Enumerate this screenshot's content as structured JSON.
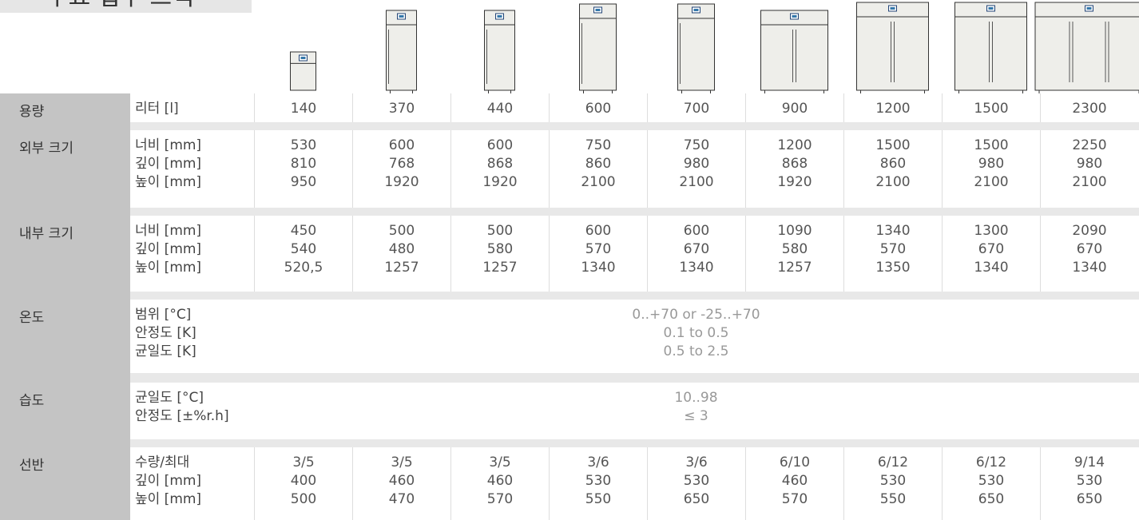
{
  "header": {
    "title": "주요 업무 스펙"
  },
  "rows": [
    {
      "label": "용량",
      "sub": [
        "리터 [l]"
      ],
      "cells": [
        [
          "140"
        ],
        [
          "370"
        ],
        [
          "440"
        ],
        [
          "600"
        ],
        [
          "700"
        ],
        [
          "900"
        ],
        [
          "1200"
        ],
        [
          "1500"
        ],
        [
          "2300"
        ]
      ]
    },
    {
      "label": "외부 크기",
      "sub": [
        "너비 [mm]",
        "깊이 [mm]",
        "높이 [mm]"
      ],
      "cells": [
        [
          "530",
          "810",
          "950"
        ],
        [
          "600",
          "768",
          "1920"
        ],
        [
          "600",
          "868",
          "1920"
        ],
        [
          "750",
          "860",
          "2100"
        ],
        [
          "750",
          "980",
          "2100"
        ],
        [
          "1200",
          "868",
          "1920"
        ],
        [
          "1500",
          "860",
          "2100"
        ],
        [
          "1500",
          "980",
          "2100"
        ],
        [
          "2250",
          "980",
          "2100"
        ]
      ]
    },
    {
      "label": "내부 크기",
      "sub": [
        "너비 [mm]",
        "깊이 [mm]",
        "높이 [mm]"
      ],
      "cells": [
        [
          "450",
          "540",
          "520,5"
        ],
        [
          "500",
          "480",
          "1257"
        ],
        [
          "500",
          "580",
          "1257"
        ],
        [
          "600",
          "570",
          "1340"
        ],
        [
          "600",
          "670",
          "1340"
        ],
        [
          "1090",
          "580",
          "1257"
        ],
        [
          "1340",
          "570",
          "1350"
        ],
        [
          "1300",
          "670",
          "1340"
        ],
        [
          "2090",
          "670",
          "1340"
        ]
      ]
    },
    {
      "label": "온도",
      "sub": [
        "범위 [°C]",
        "안정도 [K]",
        "균일도 [K]"
      ],
      "merged": [
        "0..+70 or -25..+70",
        "0.1 to 0.5",
        "0.5 to 2.5"
      ]
    },
    {
      "label": "습도",
      "sub": [
        "균일도 [°C]",
        "안정도 [±%r.h]"
      ],
      "merged": [
        "10..98",
        "≤ 3"
      ]
    },
    {
      "label": "선반",
      "sub": [
        "수량/최대",
        "깊이 [mm]",
        "높이 [mm]"
      ],
      "cells": [
        [
          "3/5",
          "400",
          "500"
        ],
        [
          "3/5",
          "460",
          "470"
        ],
        [
          "3/5",
          "460",
          "570"
        ],
        [
          "3/6",
          "530",
          "550"
        ],
        [
          "3/6",
          "530",
          "650"
        ],
        [
          "6/10",
          "460",
          "570"
        ],
        [
          "6/12",
          "530",
          "550"
        ],
        [
          "6/12",
          "530",
          "650"
        ],
        [
          "9/14",
          "530",
          "650"
        ]
      ]
    }
  ]
}
